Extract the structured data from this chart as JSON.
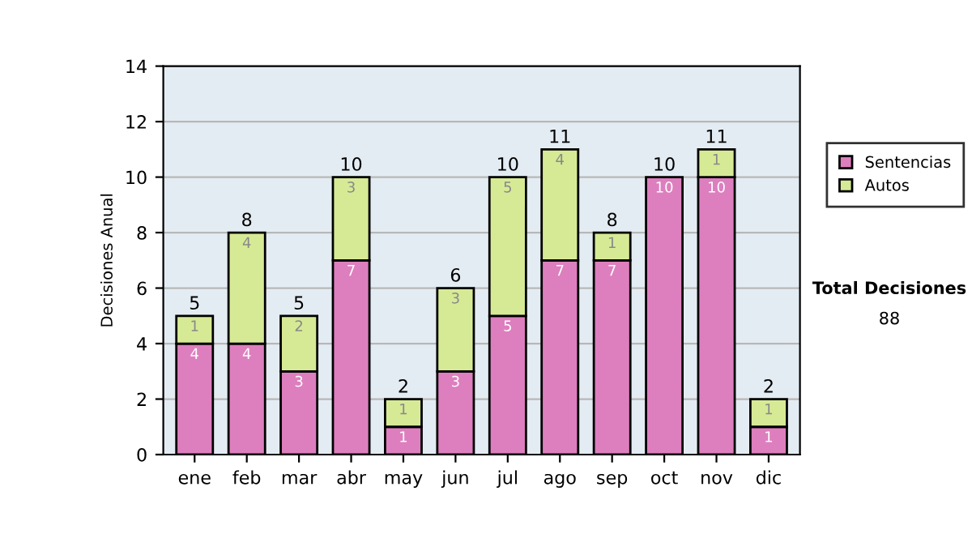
{
  "chart_data": {
    "type": "bar",
    "stacked": true,
    "ylabel": "Decisiones Anual",
    "categories": [
      "ene",
      "feb",
      "mar",
      "abr",
      "may",
      "jun",
      "jul",
      "ago",
      "sep",
      "oct",
      "nov",
      "dic"
    ],
    "series": [
      {
        "name": "Sentencias",
        "color": "#dd7fbe",
        "values": [
          4,
          4,
          3,
          7,
          1,
          3,
          5,
          7,
          7,
          10,
          10,
          1
        ],
        "value_labels": [
          "4",
          "4",
          "3",
          "7",
          "1",
          "3",
          "5",
          "7",
          "7",
          "10",
          "10",
          "1"
        ]
      },
      {
        "name": "Autos",
        "color": "#d6ea96",
        "values": [
          1,
          4,
          2,
          3,
          1,
          3,
          5,
          4,
          1,
          null,
          1,
          1
        ],
        "value_labels": [
          "1",
          "4",
          "2",
          "3",
          "1",
          "3",
          "5",
          "4",
          "1",
          null,
          "1",
          "1"
        ]
      }
    ],
    "totals": [
      "5",
      "8",
      "5",
      "10",
      "2",
      "6",
      "10",
      "11",
      "8",
      "10",
      "11",
      "2"
    ],
    "ylim": [
      0,
      14
    ],
    "yticks": [
      0,
      2,
      4,
      6,
      8,
      10,
      12,
      14
    ],
    "grid": "y",
    "legend": "right",
    "annotations": [
      "Total Decisiones",
      "88"
    ]
  }
}
